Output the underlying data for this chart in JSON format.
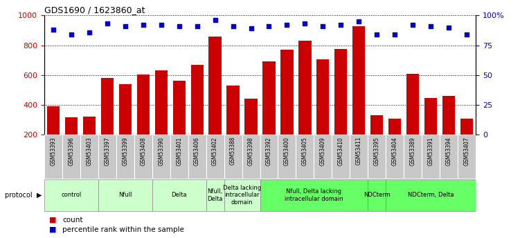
{
  "title": "GDS1690 / 1623860_at",
  "samples": [
    "GSM53393",
    "GSM53396",
    "GSM53403",
    "GSM53397",
    "GSM53399",
    "GSM53408",
    "GSM53390",
    "GSM53401",
    "GSM53406",
    "GSM53402",
    "GSM53388",
    "GSM53398",
    "GSM53392",
    "GSM53400",
    "GSM53405",
    "GSM53409",
    "GSM53410",
    "GSM53411",
    "GSM53395",
    "GSM53404",
    "GSM53389",
    "GSM53391",
    "GSM53394",
    "GSM53407"
  ],
  "counts": [
    390,
    315,
    320,
    580,
    540,
    605,
    630,
    560,
    670,
    860,
    530,
    440,
    690,
    770,
    830,
    705,
    775,
    930,
    330,
    305,
    610,
    445,
    460,
    305
  ],
  "percentiles": [
    88,
    84,
    86,
    93,
    91,
    92,
    92,
    91,
    91,
    96,
    91,
    89,
    91,
    92,
    93,
    91,
    92,
    95,
    84,
    84,
    92,
    91,
    90,
    84
  ],
  "groups": [
    {
      "label": "control",
      "start": 0,
      "end": 3,
      "color": "#ccffcc"
    },
    {
      "label": "Nfull",
      "start": 3,
      "end": 6,
      "color": "#ccffcc"
    },
    {
      "label": "Delta",
      "start": 6,
      "end": 9,
      "color": "#ccffcc"
    },
    {
      "label": "Nfull,\nDelta",
      "start": 9,
      "end": 10,
      "color": "#ccffcc"
    },
    {
      "label": "Delta lacking\nintracellular\ndomain",
      "start": 10,
      "end": 12,
      "color": "#ccffcc"
    },
    {
      "label": "Nfull, Delta lacking\nintracellular domain",
      "start": 12,
      "end": 18,
      "color": "#66ff66"
    },
    {
      "label": "NDCterm",
      "start": 18,
      "end": 19,
      "color": "#66ff66"
    },
    {
      "label": "NDCterm, Delta",
      "start": 19,
      "end": 24,
      "color": "#66ff66"
    }
  ],
  "bar_color": "#cc0000",
  "dot_color": "#0000cc",
  "ylim_left": [
    200,
    1000
  ],
  "ylim_right": [
    0,
    100
  ],
  "yticks_left": [
    200,
    400,
    600,
    800,
    1000
  ],
  "yticks_right": [
    0,
    25,
    50,
    75,
    100
  ],
  "ytick_right_labels": [
    "0",
    "25",
    "50",
    "75",
    "100%"
  ],
  "grid_color": "black"
}
